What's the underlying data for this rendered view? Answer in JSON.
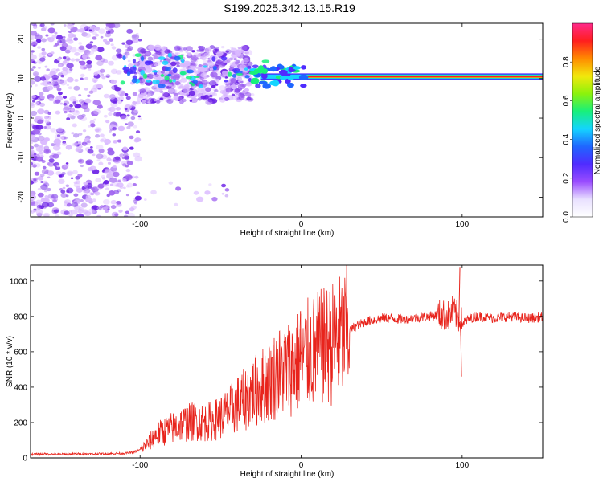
{
  "page": {
    "title": "S199.2025.342.13.15.R19"
  },
  "colors": {
    "background": "#ffffff",
    "axis": "#000000",
    "snr_line": "#e8241c",
    "scatter_light": "#d9b8ff",
    "scatter_mid": "#a064f0",
    "scatter_dark": "#6a1ee6"
  },
  "chart_data": [
    {
      "id": "spectrogram",
      "type": "heatmap",
      "title": "S199.2025.342.13.15.R19",
      "xlabel": "Height of straight line (km)",
      "ylabel": "Frequency (Hz)",
      "xlim": [
        -168,
        150
      ],
      "ylim": [
        -25,
        24
      ],
      "x_ticks": [
        -100,
        0,
        100
      ],
      "x_tick_labels": [
        "-100",
        "0",
        "100"
      ],
      "y_ticks": [
        -20,
        -10,
        0,
        10,
        20
      ],
      "y_tick_labels": [
        "-20",
        "-10",
        "0",
        "10",
        "20"
      ],
      "colorbar": {
        "label": "Normalized spectral amplitude",
        "range": [
          0,
          1
        ],
        "ticks": [
          0,
          0.2,
          0.4,
          0.6,
          0.8
        ],
        "tick_labels": [
          "0.0",
          "0.2",
          "0.4",
          "0.6",
          "0.8"
        ],
        "stops": [
          "#ffffff",
          "#e8e0ff",
          "#9a4cff",
          "#4f2cff",
          "#1f66ff",
          "#14d4ff",
          "#18f07a",
          "#8cf20c",
          "#f2e80c",
          "#ff8a00",
          "#ff1e1e",
          "#ff2a8a"
        ]
      },
      "features": {
        "scatter_x_range": [
          -168,
          -30
        ],
        "band_center_hz": 10.5,
        "band_x_range": [
          -25,
          150
        ],
        "band_peak_region_km": [
          0,
          150
        ],
        "band_peak_amplitude": 0.95
      }
    },
    {
      "id": "snr",
      "type": "line",
      "xlabel": "Height of straight line (km)",
      "ylabel": "SNR (10 * v/v)",
      "xlim": [
        -168,
        150
      ],
      "ylim": [
        0,
        1090
      ],
      "x_ticks": [
        -100,
        0,
        100
      ],
      "x_tick_labels": [
        "-100",
        "0",
        "100"
      ],
      "y_ticks": [
        0,
        200,
        400,
        600,
        800,
        1000
      ],
      "y_tick_labels": [
        "0",
        "200",
        "400",
        "600",
        "800",
        "1000"
      ],
      "x": [
        -168,
        -160,
        -150,
        -140,
        -130,
        -120,
        -110,
        -105,
        -100,
        -95,
        -90,
        -85,
        -80,
        -75,
        -70,
        -65,
        -60,
        -55,
        -50,
        -45,
        -40,
        -35,
        -30,
        -25,
        -20,
        -15,
        -10,
        -5,
        0,
        5,
        10,
        15,
        20,
        25,
        30,
        35,
        40,
        45,
        50,
        55,
        60,
        70,
        80,
        85,
        88,
        90,
        92,
        94,
        96,
        98,
        100,
        105,
        110,
        120,
        130,
        140,
        150
      ],
      "y": [
        20,
        22,
        20,
        23,
        22,
        24,
        26,
        30,
        45,
        80,
        130,
        150,
        170,
        190,
        200,
        210,
        200,
        210,
        230,
        260,
        300,
        330,
        370,
        400,
        430,
        480,
        500,
        520,
        560,
        590,
        610,
        630,
        650,
        680,
        720,
        750,
        770,
        780,
        790,
        790,
        785,
        790,
        800,
        810,
        805,
        810,
        800,
        830,
        810,
        790,
        760,
        790,
        800,
        790,
        800,
        790,
        795
      ],
      "spikes": [
        {
          "x": -1,
          "y": 830
        },
        {
          "x": 98,
          "y": 1080
        },
        {
          "x": 99,
          "y": 460
        }
      ]
    }
  ]
}
